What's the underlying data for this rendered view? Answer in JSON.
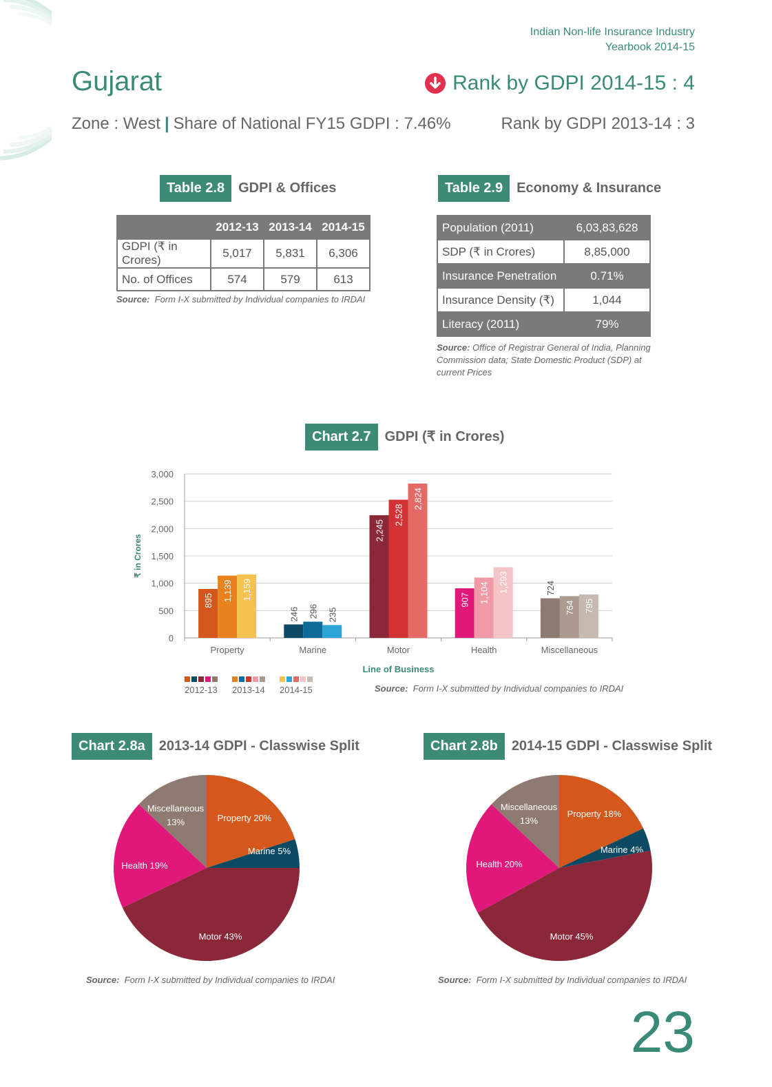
{
  "header": {
    "line1": "Indian Non-life Insurance Industry",
    "line2": "Yearbook 2014-15"
  },
  "state": {
    "name": "Gujarat",
    "rank_current": "Rank by GDPI 2014-15 : 4",
    "zone": "Zone : West",
    "share": "Share of National FY15 GDPI : 7.46%",
    "rank_prev": "Rank by GDPI 2013-14 : 3",
    "rank_trend": "down"
  },
  "table28": {
    "tag": "Table 2.8",
    "title": "GDPI & Offices",
    "headers": [
      "",
      "2012-13",
      "2013-14",
      "2014-15"
    ],
    "rows": [
      [
        "GDPI (₹ in Crores)",
        "5,017",
        "5,831",
        "6,306"
      ],
      [
        "No. of Offices",
        "574",
        "579",
        "613"
      ]
    ],
    "source_label": "Source:",
    "source_text": "Form I-X submitted by Individual companies to IRDAI"
  },
  "table29": {
    "tag": "Table 2.9",
    "title": "Economy & Insurance",
    "rows": [
      [
        "Population (2011)",
        "6,03,83,628"
      ],
      [
        "SDP (₹ in Crores)",
        "8,85,000"
      ],
      [
        "Insurance Penetration",
        "0.71%"
      ],
      [
        "Insurance Density (₹)",
        "1,044"
      ],
      [
        "Literacy (2011)",
        "79%"
      ]
    ],
    "source_label": "Source:",
    "source_line1": "Office of Registrar General of India, Planning",
    "source_line2": "Commission data; State Domestic Product (SDP) at",
    "source_line3": "current Prices"
  },
  "chart27": {
    "tag": "Chart 2.7",
    "title": "GDPI (₹ in Crores)",
    "source_label": "Source:",
    "source_text": "Form I-X submitted by Individual companies to IRDAI"
  },
  "chart28a": {
    "tag": "Chart 2.8a",
    "title": "2013-14 GDPI - Classwise Split",
    "source_label": "Source:",
    "source_text": "Form I-X submitted by Individual companies to IRDAI"
  },
  "chart28b": {
    "tag": "Chart 2.8b",
    "title": "2014-15 GDPI - Classwise Split",
    "source_label": "Source:",
    "source_text": "Form I-X submitted by Individual companies to IRDAI"
  },
  "page_number": "23",
  "chart_data": [
    {
      "type": "bar",
      "title": "GDPI (₹ in Crores)",
      "xlabel": "Line of Business",
      "ylabel": "₹ in Crores",
      "ylim": [
        0,
        3000
      ],
      "yticks": [
        "0",
        "500",
        "1,000",
        "1,500",
        "2,000",
        "2,500",
        "3,000"
      ],
      "grid": true,
      "legend": "bottom-left",
      "categories": [
        "Property",
        "Marine",
        "Motor",
        "Health",
        "Miscellaneous"
      ],
      "category_colors": [
        [
          "#d4571c",
          "#e8821e",
          "#f6c24f"
        ],
        [
          "#0c4a63",
          "#0d6b9a",
          "#2aa5d6"
        ],
        [
          "#8a2739",
          "#d13234",
          "#e46a68"
        ],
        [
          "#e0187a",
          "#ef9aa6",
          "#f5c4c6"
        ],
        [
          "#8e7a70",
          "#ac9a90",
          "#c5b9b1"
        ]
      ],
      "series": [
        {
          "name": "2012-13",
          "values": [
            895,
            246,
            2245,
            907,
            724
          ],
          "labels": [
            "895",
            "246",
            "2,245",
            "907",
            "724"
          ]
        },
        {
          "name": "2013-14",
          "values": [
            1139,
            296,
            2528,
            1104,
            764
          ],
          "labels": [
            "1,139",
            "296",
            "2,528",
            "1,104",
            "764"
          ]
        },
        {
          "name": "2014-15",
          "values": [
            1159,
            235,
            2824,
            1293,
            795
          ],
          "labels": [
            "1,159",
            "235",
            "2,824",
            "1,293",
            "795"
          ]
        }
      ]
    },
    {
      "type": "pie",
      "title": "2013-14 GDPI - Classwise Split",
      "slices": [
        {
          "name": "Property",
          "value": 20,
          "label": "Property 20%",
          "color": "#d4571c"
        },
        {
          "name": "Marine",
          "value": 5,
          "label": "Marine 5%",
          "color": "#0c4a63"
        },
        {
          "name": "Motor",
          "value": 43,
          "label": "Motor 43%",
          "color": "#8a2739"
        },
        {
          "name": "Health",
          "value": 19,
          "label": "Health 19%",
          "color": "#e0187a"
        },
        {
          "name": "Miscellaneous",
          "value": 13,
          "label": "Miscellaneous",
          "label2": "13%",
          "color": "#8e7a70"
        }
      ]
    },
    {
      "type": "pie",
      "title": "2014-15 GDPI - Classwise Split",
      "slices": [
        {
          "name": "Property",
          "value": 18,
          "label": "Property 18%",
          "color": "#d4571c"
        },
        {
          "name": "Marine",
          "value": 4,
          "label": "Marine 4%",
          "color": "#0c4a63"
        },
        {
          "name": "Motor",
          "value": 45,
          "label": "Motor 45%",
          "color": "#8a2739"
        },
        {
          "name": "Health",
          "value": 20,
          "label": "Health 20%",
          "color": "#e0187a"
        },
        {
          "name": "Miscellaneous",
          "value": 13,
          "label": "Miscellaneous",
          "label2": "13%",
          "color": "#8e7a70"
        }
      ]
    }
  ]
}
